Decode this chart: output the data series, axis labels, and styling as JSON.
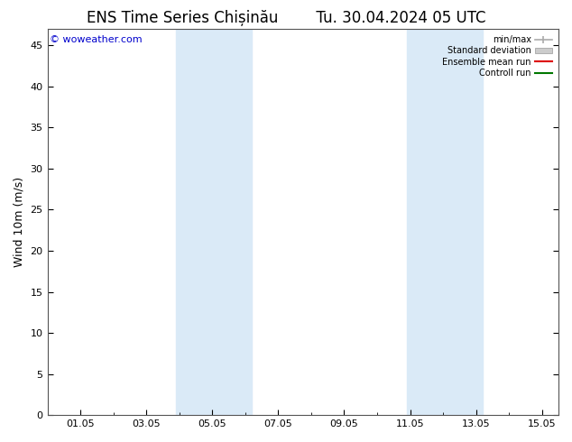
{
  "title": "ENS Time Series Chișinău",
  "subtitle": "Tu. 30.04.2024 05 UTC",
  "ylabel": "Wind 10m (m/s)",
  "watermark": "© woweather.com",
  "ylim": [
    0,
    47
  ],
  "yticks": [
    0,
    5,
    10,
    15,
    20,
    25,
    30,
    35,
    40,
    45
  ],
  "xtick_labels": [
    "01.05",
    "03.05",
    "05.05",
    "07.05",
    "09.05",
    "11.05",
    "13.05",
    "15.05"
  ],
  "xtick_positions": [
    1,
    3,
    5,
    7,
    9,
    11,
    13,
    15
  ],
  "xlim": [
    0,
    15.5
  ],
  "shaded_bands": [
    {
      "x_start": 3.9,
      "x_end": 6.2,
      "color": "#daeaf7"
    },
    {
      "x_start": 10.9,
      "x_end": 13.2,
      "color": "#daeaf7"
    }
  ],
  "legend_items": [
    {
      "label": "min/max",
      "color": "#aaaaaa",
      "type": "errbar"
    },
    {
      "label": "Standard deviation",
      "color": "#cccccc",
      "type": "patch"
    },
    {
      "label": "Ensemble mean run",
      "color": "#dd0000",
      "type": "line"
    },
    {
      "label": "Controll run",
      "color": "#007700",
      "type": "line"
    }
  ],
  "background_color": "#ffffff",
  "plot_bg_color": "#ffffff",
  "title_fontsize": 12,
  "label_fontsize": 9,
  "tick_fontsize": 8,
  "watermark_color": "#0000cc",
  "watermark_fontsize": 8,
  "spine_color": "#555555"
}
